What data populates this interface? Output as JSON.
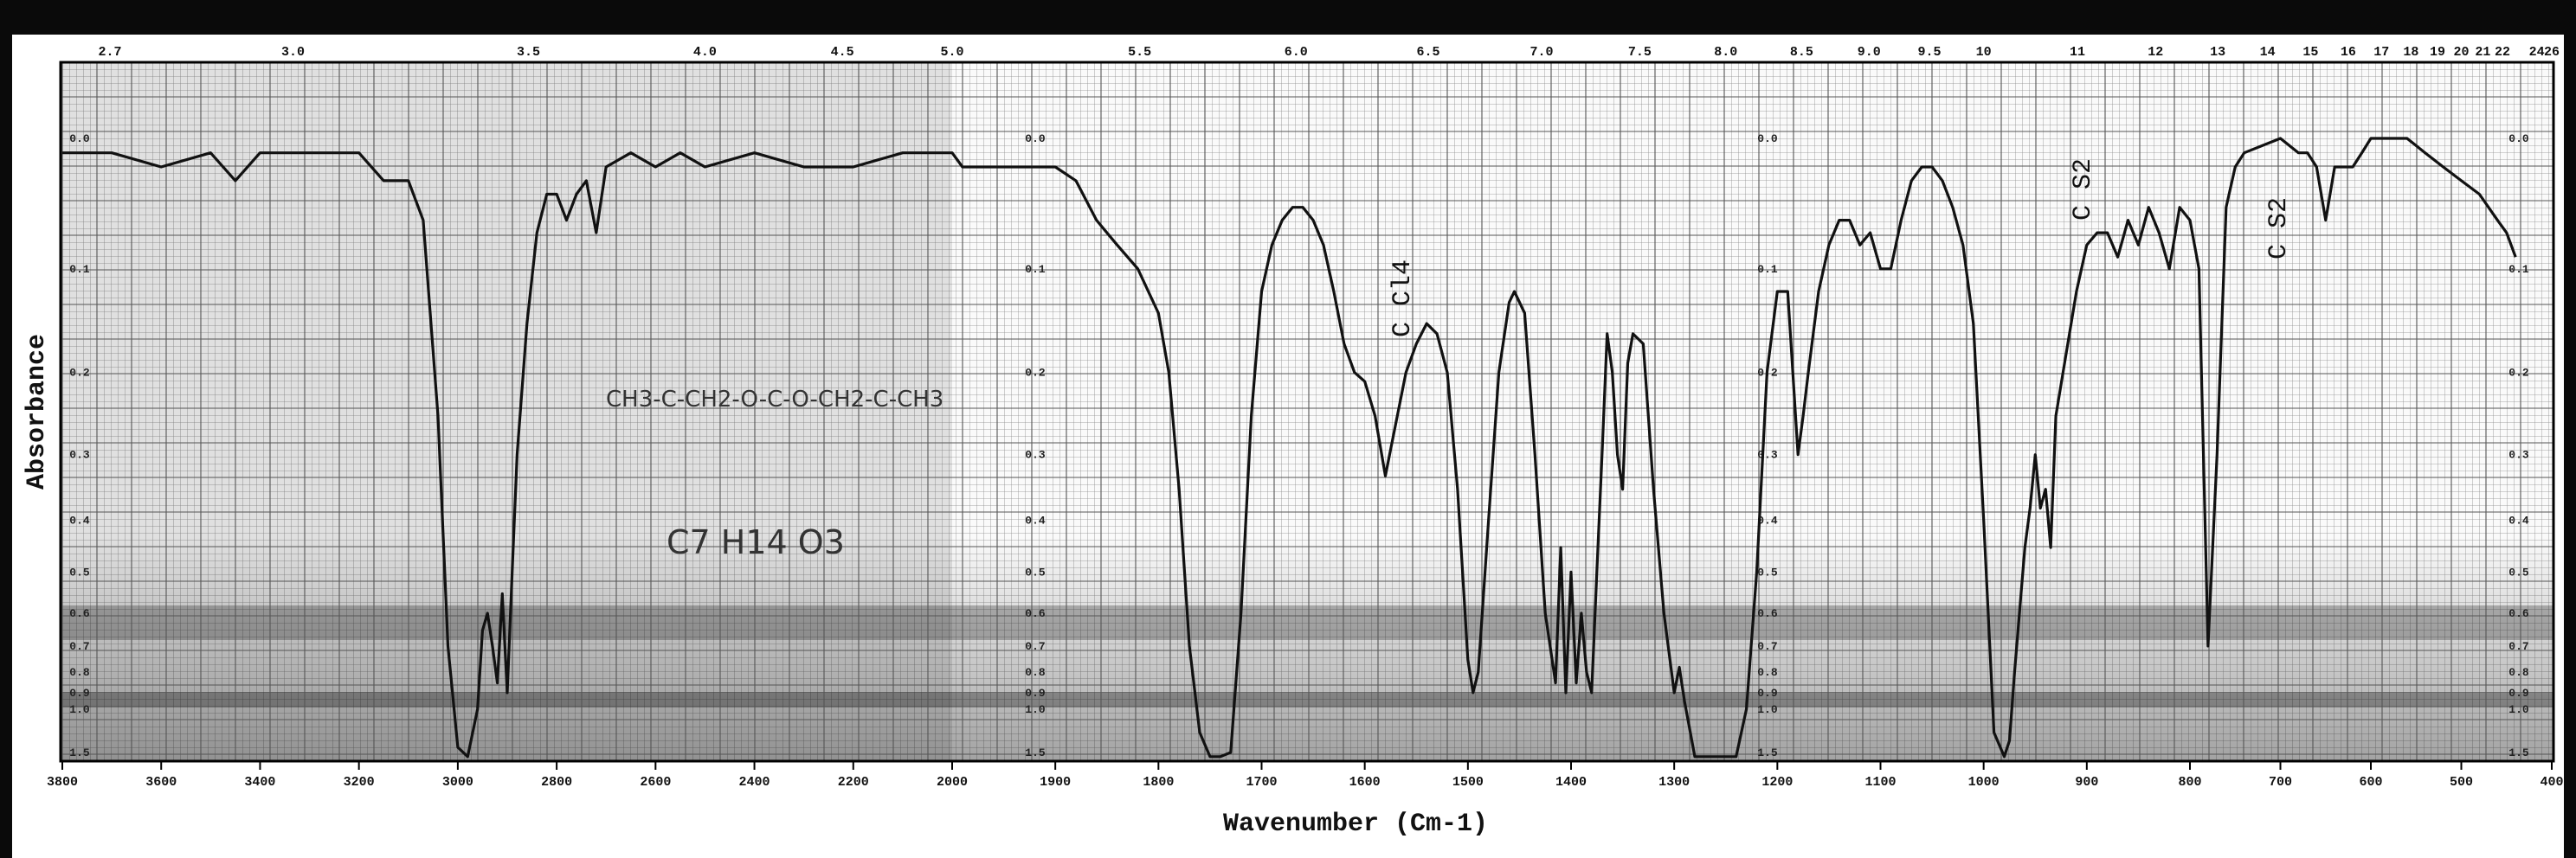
{
  "chart_data": {
    "type": "line",
    "xlabel": "Wavenumber (Cm-1)",
    "ylabel": "Absorbance",
    "top_axis_labels": [
      "2.7",
      "3.0",
      "3.5",
      "4.0",
      "4.5",
      "5.0",
      "5.5",
      "6.0",
      "6.5",
      "7.0",
      "7.5",
      "8.0",
      "8.5",
      "9.0",
      "9.5",
      "10",
      "11",
      "12",
      "13",
      "14",
      "15",
      "16",
      "17",
      "18",
      "19",
      "20",
      "21",
      "22",
      "24",
      "26"
    ],
    "top_axis_values": [
      2.7,
      3.0,
      3.5,
      4.0,
      4.5,
      5.0,
      5.5,
      6.0,
      6.5,
      7.0,
      7.5,
      8.0,
      8.5,
      9.0,
      9.5,
      10,
      11,
      12,
      13,
      14,
      15,
      16,
      17,
      18,
      19,
      20,
      21,
      22,
      24,
      26
    ],
    "x_ticks_segment1": [
      3800,
      3600,
      3400,
      3200,
      3000,
      2800,
      2600,
      2400,
      2200,
      2000
    ],
    "x_ticks_segment2": [
      1900,
      1800,
      1700,
      1600,
      1500,
      1400,
      1300,
      1200,
      1100,
      1000,
      900
    ],
    "x_ticks_segment3": [
      800,
      700,
      600,
      500,
      400
    ],
    "bottom_axis_labels": [
      "3800",
      "3600",
      "3400",
      "3200",
      "3000",
      "2800",
      "2600",
      "2400",
      "2200",
      "2000",
      "1900",
      "1800",
      "1700",
      "1600",
      "1500",
      "1400",
      "1300",
      "1200",
      "1100",
      "1000",
      "900",
      "800",
      "700",
      "600",
      "500",
      "400"
    ],
    "absorbance_labels": [
      "0.0",
      "0.1",
      "0.2",
      "0.3",
      "0.4",
      "0.5",
      "0.6",
      "0.7",
      "0.8",
      "0.9",
      "1.0",
      "1.5"
    ],
    "absorbance_values": [
      0.0,
      0.1,
      0.2,
      0.3,
      0.4,
      0.5,
      0.6,
      0.7,
      0.8,
      0.9,
      1.0,
      1.5
    ],
    "series": [
      {
        "points": [
          [
            3800,
            0.01
          ],
          [
            3700,
            0.01
          ],
          [
            3600,
            0.02
          ],
          [
            3500,
            0.01
          ],
          [
            3450,
            0.03
          ],
          [
            3400,
            0.01
          ],
          [
            3300,
            0.01
          ],
          [
            3200,
            0.01
          ],
          [
            3150,
            0.03
          ],
          [
            3100,
            0.03
          ],
          [
            3070,
            0.06
          ],
          [
            3040,
            0.25
          ],
          [
            3020,
            0.7
          ],
          [
            3000,
            1.4
          ],
          [
            2980,
            1.6
          ],
          [
            2960,
            1.0
          ],
          [
            2950,
            0.65
          ],
          [
            2940,
            0.6
          ],
          [
            2930,
            0.7
          ],
          [
            2920,
            0.85
          ],
          [
            2910,
            0.55
          ],
          [
            2900,
            0.9
          ],
          [
            2890,
            0.5
          ],
          [
            2880,
            0.3
          ],
          [
            2860,
            0.15
          ],
          [
            2840,
            0.07
          ],
          [
            2820,
            0.04
          ],
          [
            2800,
            0.04
          ],
          [
            2780,
            0.06
          ],
          [
            2760,
            0.04
          ],
          [
            2740,
            0.03
          ],
          [
            2720,
            0.07
          ],
          [
            2700,
            0.02
          ],
          [
            2650,
            0.01
          ],
          [
            2600,
            0.02
          ],
          [
            2550,
            0.01
          ],
          [
            2500,
            0.02
          ],
          [
            2400,
            0.01
          ],
          [
            2300,
            0.02
          ],
          [
            2200,
            0.02
          ],
          [
            2100,
            0.01
          ],
          [
            2000,
            0.01
          ],
          [
            1990,
            0.02
          ],
          [
            1950,
            0.02
          ],
          [
            1900,
            0.02
          ],
          [
            1880,
            0.03
          ],
          [
            1860,
            0.06
          ],
          [
            1840,
            0.08
          ],
          [
            1820,
            0.1
          ],
          [
            1800,
            0.14
          ],
          [
            1790,
            0.2
          ],
          [
            1780,
            0.35
          ],
          [
            1770,
            0.7
          ],
          [
            1760,
            1.2
          ],
          [
            1750,
            1.6
          ],
          [
            1740,
            1.6
          ],
          [
            1730,
            1.5
          ],
          [
            1720,
            0.6
          ],
          [
            1710,
            0.25
          ],
          [
            1700,
            0.12
          ],
          [
            1690,
            0.08
          ],
          [
            1680,
            0.06
          ],
          [
            1670,
            0.05
          ],
          [
            1660,
            0.05
          ],
          [
            1650,
            0.06
          ],
          [
            1640,
            0.08
          ],
          [
            1630,
            0.12
          ],
          [
            1620,
            0.17
          ],
          [
            1610,
            0.2
          ],
          [
            1600,
            0.21
          ],
          [
            1590,
            0.25
          ],
          [
            1580,
            0.33
          ],
          [
            1570,
            0.26
          ],
          [
            1560,
            0.2
          ],
          [
            1550,
            0.17
          ],
          [
            1540,
            0.15
          ],
          [
            1530,
            0.16
          ],
          [
            1520,
            0.2
          ],
          [
            1510,
            0.35
          ],
          [
            1500,
            0.75
          ],
          [
            1495,
            0.9
          ],
          [
            1490,
            0.8
          ],
          [
            1480,
            0.4
          ],
          [
            1470,
            0.2
          ],
          [
            1460,
            0.13
          ],
          [
            1455,
            0.12
          ],
          [
            1445,
            0.14
          ],
          [
            1435,
            0.3
          ],
          [
            1425,
            0.6
          ],
          [
            1415,
            0.85
          ],
          [
            1410,
            0.45
          ],
          [
            1405,
            0.9
          ],
          [
            1400,
            0.5
          ],
          [
            1395,
            0.85
          ],
          [
            1390,
            0.6
          ],
          [
            1385,
            0.8
          ],
          [
            1380,
            0.9
          ],
          [
            1375,
            0.5
          ],
          [
            1370,
            0.3
          ],
          [
            1365,
            0.16
          ],
          [
            1360,
            0.2
          ],
          [
            1355,
            0.3
          ],
          [
            1350,
            0.35
          ],
          [
            1345,
            0.19
          ],
          [
            1340,
            0.16
          ],
          [
            1330,
            0.17
          ],
          [
            1320,
            0.35
          ],
          [
            1310,
            0.6
          ],
          [
            1300,
            0.9
          ],
          [
            1295,
            0.78
          ],
          [
            1290,
            0.95
          ],
          [
            1280,
            1.6
          ],
          [
            1260,
            1.6
          ],
          [
            1240,
            1.6
          ],
          [
            1230,
            1.0
          ],
          [
            1220,
            0.5
          ],
          [
            1210,
            0.2
          ],
          [
            1200,
            0.12
          ],
          [
            1190,
            0.12
          ],
          [
            1180,
            0.3
          ],
          [
            1175,
            0.25
          ],
          [
            1170,
            0.2
          ],
          [
            1160,
            0.12
          ],
          [
            1150,
            0.08
          ],
          [
            1140,
            0.06
          ],
          [
            1130,
            0.06
          ],
          [
            1120,
            0.08
          ],
          [
            1110,
            0.07
          ],
          [
            1100,
            0.1
          ],
          [
            1090,
            0.1
          ],
          [
            1080,
            0.06
          ],
          [
            1070,
            0.03
          ],
          [
            1060,
            0.02
          ],
          [
            1050,
            0.02
          ],
          [
            1040,
            0.03
          ],
          [
            1030,
            0.05
          ],
          [
            1020,
            0.08
          ],
          [
            1010,
            0.15
          ],
          [
            1000,
            0.4
          ],
          [
            990,
            1.2
          ],
          [
            980,
            1.6
          ],
          [
            975,
            1.3
          ],
          [
            970,
            0.8
          ],
          [
            960,
            0.45
          ],
          [
            955,
            0.38
          ],
          [
            950,
            0.3
          ],
          [
            945,
            0.38
          ],
          [
            940,
            0.35
          ],
          [
            935,
            0.45
          ],
          [
            930,
            0.25
          ],
          [
            920,
            0.18
          ],
          [
            910,
            0.12
          ],
          [
            900,
            0.08
          ],
          [
            890,
            0.07
          ],
          [
            880,
            0.07
          ],
          [
            870,
            0.09
          ],
          [
            860,
            0.06
          ],
          [
            850,
            0.08
          ],
          [
            840,
            0.05
          ],
          [
            830,
            0.07
          ],
          [
            820,
            0.1
          ],
          [
            810,
            0.05
          ],
          [
            800,
            0.06
          ],
          [
            790,
            0.1
          ],
          [
            780,
            0.7
          ],
          [
            770,
            0.3
          ],
          [
            760,
            0.05
          ],
          [
            750,
            0.02
          ],
          [
            740,
            0.01
          ],
          [
            700,
            0.0
          ],
          [
            680,
            0.01
          ],
          [
            670,
            0.01
          ],
          [
            660,
            0.02
          ],
          [
            650,
            0.06
          ],
          [
            640,
            0.02
          ],
          [
            620,
            0.02
          ],
          [
            610,
            0.01
          ],
          [
            600,
            0.0
          ],
          [
            580,
            0.0
          ],
          [
            560,
            0.0
          ],
          [
            540,
            0.01
          ],
          [
            520,
            0.02
          ],
          [
            500,
            0.03
          ],
          [
            480,
            0.04
          ],
          [
            460,
            0.06
          ],
          [
            450,
            0.07
          ],
          [
            440,
            0.09
          ]
        ]
      }
    ]
  },
  "annotations": {
    "ccl4": "C Cl4",
    "cs2_a": "C S2",
    "cs2_b": "C S2",
    "formula": "C7 H14 O3",
    "structure": "CH3-C-CH2-O-C-O-CH2-C-CH3"
  }
}
